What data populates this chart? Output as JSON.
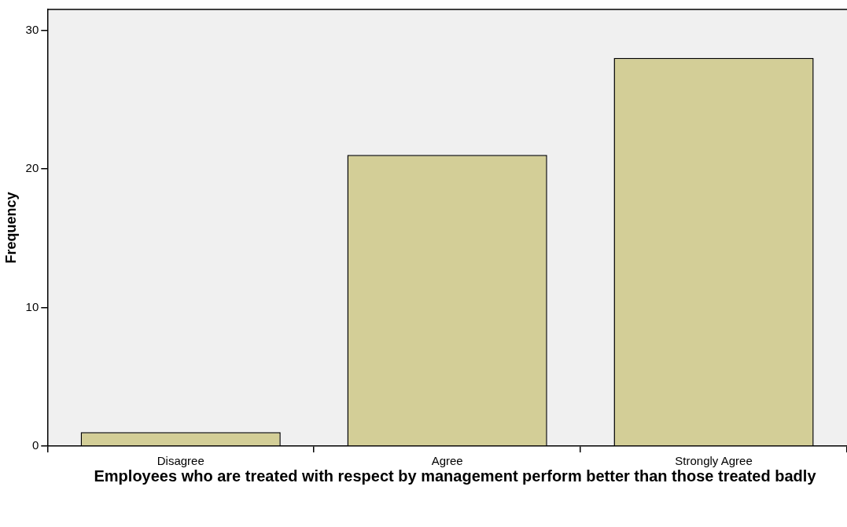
{
  "chart_data": {
    "type": "bar",
    "xlabel": "Employees who are treated with respect by management perform better than those treated badly",
    "ylabel": "Frequency",
    "categories": [
      "Disagree",
      "Agree",
      "Strongly Agree"
    ],
    "values": [
      1,
      21,
      28
    ],
    "color": "#d3ce97",
    "ylim": [
      0,
      31.5
    ],
    "yticks": [
      0,
      10,
      20,
      30
    ],
    "grid": false,
    "legend": false
  }
}
